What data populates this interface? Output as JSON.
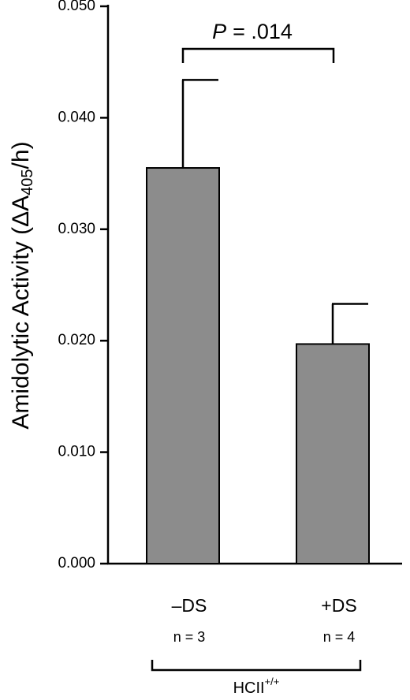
{
  "chart_data": {
    "type": "bar",
    "y_label": "Amidolytic Activity (ΔA",
    "y_label_sub": "405",
    "y_label_end": "/h)",
    "categories": [
      "–DS",
      "+DS"
    ],
    "n_labels": [
      "n = 3",
      "n = 4"
    ],
    "values": [
      0.0355,
      0.0197
    ],
    "errors": [
      0.0079,
      0.0036
    ],
    "color": "#8c8c8c",
    "annotation_italic": "P",
    "annotation": "= .014",
    "group_label": "HCII",
    "group_label_sup": "+/+",
    "ylim": [
      0,
      0.05
    ],
    "yticks": [
      {
        "value": 0,
        "label": "0.000"
      },
      {
        "value": 0.01,
        "label": "0.010"
      },
      {
        "value": 0.02,
        "label": "0.020"
      },
      {
        "value": 0.03,
        "label": "0.030"
      },
      {
        "value": 0.04,
        "label": "0.040"
      },
      {
        "value": 0.05,
        "label": "0.050"
      }
    ]
  }
}
